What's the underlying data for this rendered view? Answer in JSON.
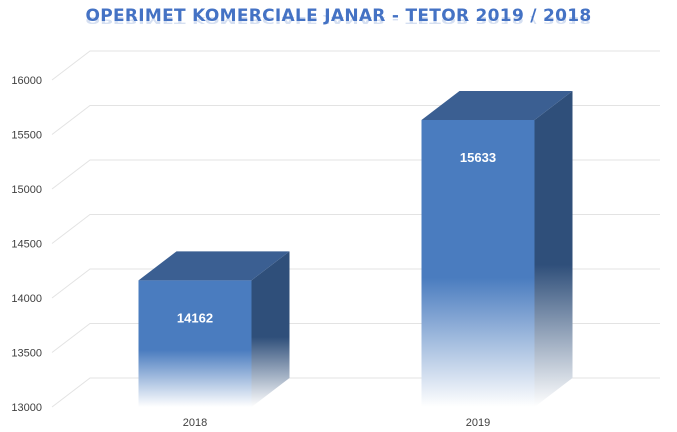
{
  "chart_data": {
    "type": "bar",
    "title": "OPERIMET KOMERCIALE JANAR - TETOR 2019 / 2018",
    "categories": [
      "2018",
      "2019"
    ],
    "values": [
      14162,
      15633
    ],
    "data_labels": [
      "14162",
      "15633"
    ],
    "yticks": [
      "13000",
      "13500",
      "14000",
      "14500",
      "15000",
      "15500",
      "16000"
    ],
    "ylim": [
      13000,
      16000
    ],
    "xlabel": "",
    "ylabel": "",
    "grid": true,
    "legend": "none",
    "bar_color": "#4a7cbf",
    "bar_side_color": "#2f4f7a",
    "bar_top_color": "#3b5f92"
  }
}
